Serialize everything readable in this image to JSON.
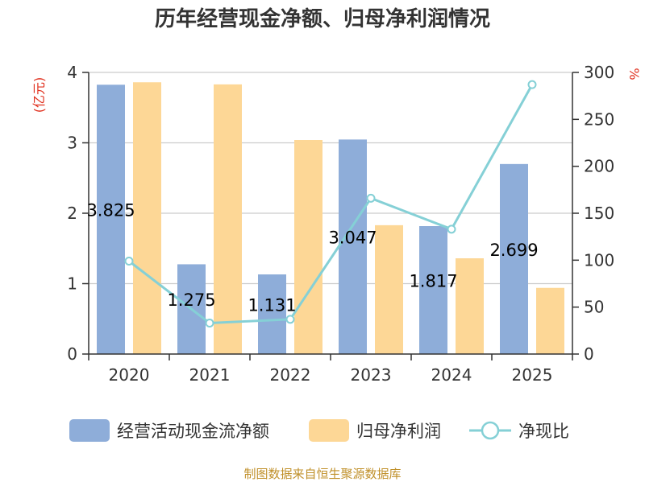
{
  "chart_data": {
    "type": "bar",
    "title": "历年经营现金净额、归母净利润情况",
    "categories": [
      "2020",
      "2021",
      "2022",
      "2023",
      "2024",
      "2025"
    ],
    "series": [
      {
        "name": "经营活动现金流净额",
        "type": "bar",
        "axis": "left",
        "color": "#8eadd9",
        "values": [
          3.825,
          1.275,
          1.131,
          3.047,
          1.817,
          2.699
        ],
        "labels": [
          "3.825",
          "1.275",
          "1.131",
          "3.047",
          "1.817",
          "2.699"
        ]
      },
      {
        "name": "归母净利润",
        "type": "bar",
        "axis": "left",
        "color": "#fdd796",
        "values": [
          3.86,
          3.83,
          3.04,
          1.83,
          1.36,
          0.94
        ]
      },
      {
        "name": "净现比",
        "type": "line",
        "axis": "right",
        "color": "#85d0d6",
        "values": [
          99,
          33,
          37,
          166,
          133,
          287
        ]
      }
    ],
    "left_axis": {
      "unit": "(亿元)",
      "ylim": [
        0,
        4
      ],
      "ticks": [
        "0",
        "1",
        "2",
        "3",
        "4"
      ]
    },
    "right_axis": {
      "unit": "%",
      "ylim": [
        0,
        300
      ],
      "ticks": [
        "0",
        "50",
        "100",
        "150",
        "200",
        "250",
        "300"
      ]
    },
    "grid": true,
    "legend_position": "bottom",
    "source": "制图数据来自恒生聚源数据库"
  }
}
